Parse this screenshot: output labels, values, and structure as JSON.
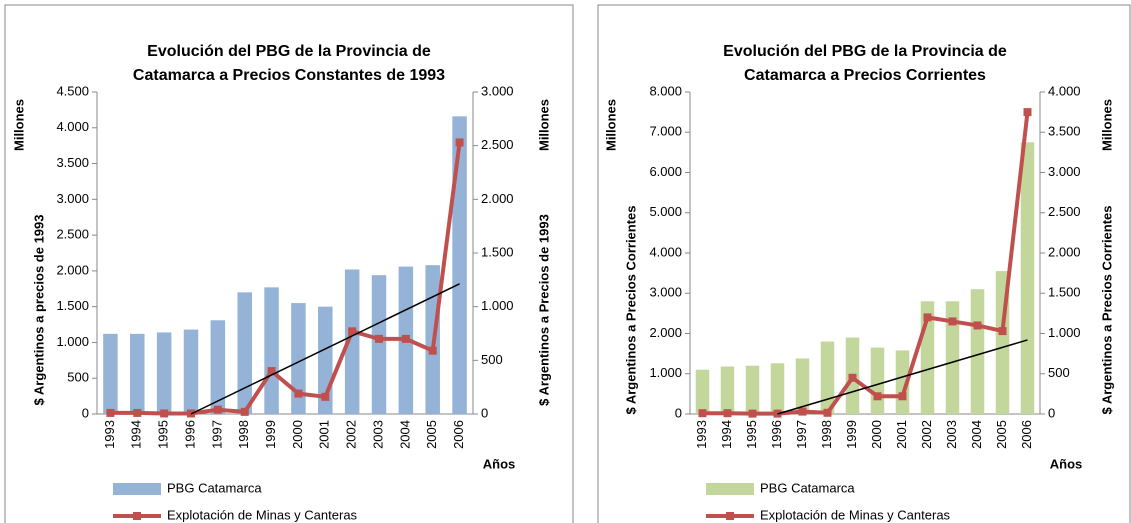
{
  "chart_data": [
    {
      "type": "bar-line",
      "title": [
        "Evolución del PBG de la Provincia de",
        "Catamarca  a Precios Constantes de 1993"
      ],
      "ylabel": "$ Argentinos a precios de 1993",
      "y2label": "$ Argentinos a Precios de 1993",
      "yunit": "Millones",
      "y2unit": "Millones",
      "xlabel": "Años",
      "categories": [
        "1993",
        "1994",
        "1995",
        "1996",
        "1997",
        "1998",
        "1999",
        "2000",
        "2001",
        "2002",
        "2003",
        "2004",
        "2005",
        "2006"
      ],
      "series": [
        {
          "name": "PBG Catamarca",
          "type": "bar",
          "color": "#95b3d7",
          "values": [
            1120,
            1120,
            1140,
            1180,
            1310,
            1700,
            1770,
            1550,
            1500,
            2020,
            1940,
            2060,
            2080,
            4160
          ]
        },
        {
          "name": "Explotación de Minas y Canteras",
          "type": "line",
          "axis": "y2",
          "color": "#c0504d",
          "values": [
            10,
            10,
            5,
            5,
            40,
            20,
            400,
            190,
            160,
            770,
            700,
            700,
            590,
            2530
          ]
        }
      ],
      "trend": {
        "categories": [
          "1996",
          "2006"
        ],
        "values": [
          0,
          1213
        ],
        "axis": "y2",
        "color": "#000000"
      },
      "ylim": [
        0,
        4500
      ],
      "yticks": [
        0,
        500,
        {
          "value": 1000,
          "label": "1.000"
        },
        {
          "value": 1500,
          "label": "1.500"
        },
        {
          "value": 2000,
          "label": "2.000"
        },
        {
          "value": 2500,
          "label": "2.500"
        },
        {
          "value": 3000,
          "label": "3.000"
        },
        {
          "value": 3500,
          "label": "3.500"
        },
        {
          "value": 4000,
          "label": "4.000"
        },
        {
          "value": 4500,
          "label": "4.500"
        }
      ],
      "y2lim": [
        0,
        3000
      ],
      "y2ticks": [
        0,
        500,
        {
          "value": 1000,
          "label": "1.000"
        },
        {
          "value": 1500,
          "label": "1.500"
        },
        {
          "value": 2000,
          "label": "2.000"
        },
        {
          "value": 2500,
          "label": "2.500"
        },
        {
          "value": 3000,
          "label": "3.000"
        }
      ],
      "legend": "bottom"
    },
    {
      "type": "bar-line",
      "title": [
        "Evolución del PBG de la Provincia de",
        "Catamarca  a Precios Corrientes"
      ],
      "ylabel": "$ Argentinos a Precios Corrientes",
      "y2label": "$ Argentinos a Precios Corrientes",
      "yunit": "Millones",
      "y2unit": "Millones",
      "xlabel": "Años",
      "categories": [
        "1993",
        "1994",
        "1995",
        "1996",
        "1997",
        "1998",
        "1999",
        "2000",
        "2001",
        "2002",
        "2003",
        "2004",
        "2005",
        "2006"
      ],
      "series": [
        {
          "name": "PBG Catamarca",
          "type": "bar",
          "color": "#c3d69b",
          "values": [
            1100,
            1180,
            1200,
            1260,
            1380,
            1800,
            1900,
            1650,
            1580,
            2800,
            2800,
            3100,
            3550,
            6750
          ]
        },
        {
          "name": "Explotación de Minas y Canteras",
          "type": "line",
          "axis": "y2",
          "color": "#c0504d",
          "values": [
            10,
            10,
            5,
            5,
            30,
            15,
            450,
            220,
            220,
            1200,
            1150,
            1100,
            1030,
            3750
          ]
        }
      ],
      "trend": {
        "categories": [
          "1996",
          "2006"
        ],
        "values": [
          0,
          920
        ],
        "axis": "y2",
        "color": "#000000"
      },
      "ylim": [
        0,
        8000
      ],
      "yticks": [
        0,
        {
          "value": 1000,
          "label": "1.000"
        },
        {
          "value": 2000,
          "label": "2.000"
        },
        {
          "value": 3000,
          "label": "3.000"
        },
        {
          "value": 4000,
          "label": "4.000"
        },
        {
          "value": 5000,
          "label": "5.000"
        },
        {
          "value": 6000,
          "label": "6.000"
        },
        {
          "value": 7000,
          "label": "7.000"
        },
        {
          "value": 8000,
          "label": "8.000"
        }
      ],
      "y2lim": [
        0,
        4000
      ],
      "y2ticks": [
        0,
        500,
        {
          "value": 1000,
          "label": "1.000"
        },
        {
          "value": 1500,
          "label": "1.500"
        },
        {
          "value": 2000,
          "label": "2.000"
        },
        {
          "value": 2500,
          "label": "2.500"
        },
        {
          "value": 3000,
          "label": "3.000"
        },
        {
          "value": 3500,
          "label": "3.500"
        },
        {
          "value": 4000,
          "label": "4.000"
        }
      ],
      "legend": "bottom"
    }
  ]
}
